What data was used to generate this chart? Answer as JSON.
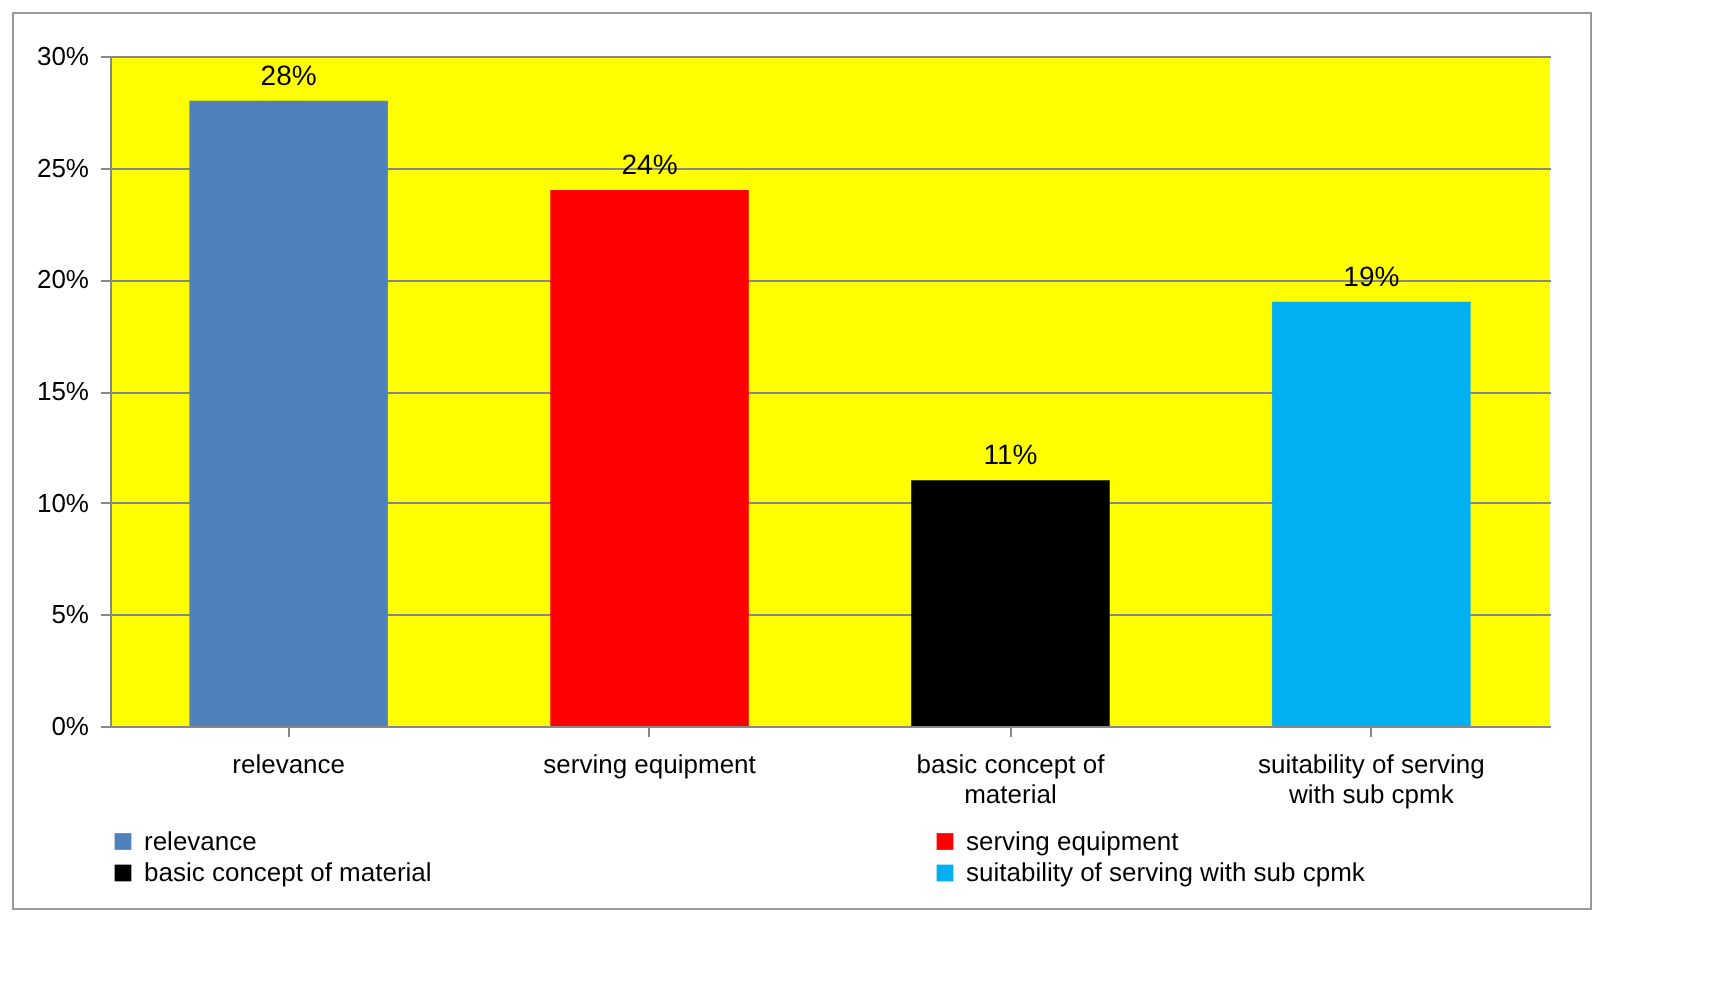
{
  "chart_data": {
    "type": "bar",
    "categories": [
      "relevance",
      "serving equipment",
      "basic concept of material",
      "suitability of serving with sub cpmk"
    ],
    "series": [
      {
        "name": "relevance",
        "color": "#4f81bd",
        "values": [
          28,
          null,
          null,
          null
        ],
        "value_labels": [
          "28%",
          null,
          null,
          null
        ]
      },
      {
        "name": "serving equipment",
        "color": "#ff0000",
        "values": [
          null,
          24,
          null,
          null
        ],
        "value_labels": [
          null,
          "24%",
          null,
          null
        ]
      },
      {
        "name": "basic concept of material",
        "color": "#000000",
        "values": [
          null,
          null,
          11,
          null
        ],
        "value_labels": [
          null,
          null,
          "11%",
          null
        ]
      },
      {
        "name": "suitability of serving with sub cpmk",
        "color": "#00b0f0",
        "values": [
          null,
          null,
          null,
          19
        ],
        "value_labels": [
          null,
          null,
          null,
          "19%"
        ]
      }
    ],
    "ylim": [
      0,
      30
    ],
    "yticks": [
      {
        "value": 0,
        "label": "0%"
      },
      {
        "value": 5,
        "label": "5%"
      },
      {
        "value": 10,
        "label": "10%"
      },
      {
        "value": 15,
        "label": "15%"
      },
      {
        "value": 20,
        "label": "20%"
      },
      {
        "value": 25,
        "label": "25%"
      },
      {
        "value": 30,
        "label": "30%"
      }
    ],
    "grid": "y",
    "legend": "bottom"
  }
}
